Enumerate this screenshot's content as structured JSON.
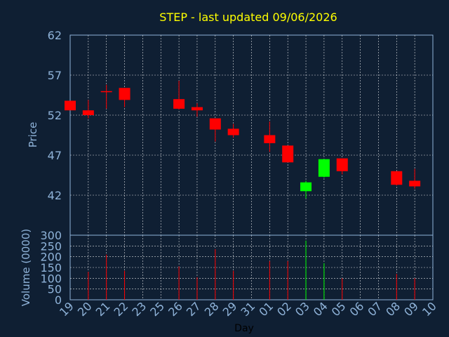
{
  "title": "STEP - last updated 09/06/2026",
  "colors": {
    "background": "#0f1f33",
    "axis_text": "#8fb3d9",
    "title": "#ffff00",
    "up": "#00ff00",
    "down": "#ff0000",
    "grid": "#ffffff"
  },
  "chart_data": [
    {
      "type": "candlestick",
      "ylabel": "Price",
      "ylim": [
        37,
        62
      ],
      "yticks": [
        42,
        47,
        52,
        57,
        62
      ],
      "grid": true,
      "categories": [
        "19",
        "20",
        "21",
        "22",
        "23",
        "25",
        "26",
        "27",
        "28",
        "29",
        "31",
        "01",
        "02",
        "03",
        "04",
        "05",
        "06",
        "07",
        "08",
        "09",
        "10"
      ],
      "candles": [
        {
          "day": "19",
          "open": 53.8,
          "high": 53.8,
          "low": 52.8,
          "close": 52.6
        },
        {
          "day": "20",
          "open": 52.6,
          "high": 53.9,
          "low": 51.6,
          "close": 52.0
        },
        {
          "day": "21",
          "open": 55.0,
          "high": 55.8,
          "low": 52.8,
          "close": 54.9
        },
        {
          "day": "22",
          "open": 55.4,
          "high": 55.4,
          "low": 53.0,
          "close": 53.9
        },
        {
          "day": "26",
          "open": 54.0,
          "high": 56.3,
          "low": 52.7,
          "close": 52.8
        },
        {
          "day": "27",
          "open": 53.0,
          "high": 53.5,
          "low": 51.8,
          "close": 52.6
        },
        {
          "day": "28",
          "open": 51.6,
          "high": 51.6,
          "low": 48.7,
          "close": 50.2
        },
        {
          "day": "29",
          "open": 50.3,
          "high": 50.9,
          "low": 49.2,
          "close": 49.5
        },
        {
          "day": "01",
          "open": 49.5,
          "high": 51.2,
          "low": 47.4,
          "close": 48.5
        },
        {
          "day": "02",
          "open": 48.2,
          "high": 48.2,
          "low": 46.1,
          "close": 46.1
        },
        {
          "day": "03",
          "open": 42.5,
          "high": 43.8,
          "low": 41.6,
          "close": 43.6
        },
        {
          "day": "04",
          "open": 44.3,
          "high": 46.5,
          "low": 44.2,
          "close": 46.5
        },
        {
          "day": "05",
          "open": 46.6,
          "high": 46.6,
          "low": 44.6,
          "close": 45.0
        },
        {
          "day": "08",
          "open": 45.0,
          "high": 45.0,
          "low": 43.2,
          "close": 43.3
        },
        {
          "day": "09",
          "open": 43.8,
          "high": 45.3,
          "low": 42.8,
          "close": 43.1
        }
      ]
    },
    {
      "type": "bar",
      "ylabel": "Volume (0000)",
      "xlabel": "Day",
      "ylim": [
        0,
        300
      ],
      "yticks": [
        0,
        50,
        100,
        150,
        200,
        250,
        300
      ],
      "grid": true,
      "categories": [
        "19",
        "20",
        "21",
        "22",
        "23",
        "25",
        "26",
        "27",
        "28",
        "29",
        "31",
        "01",
        "02",
        "03",
        "04",
        "05",
        "06",
        "07",
        "08",
        "09",
        "10"
      ],
      "bars": [
        {
          "day": "20",
          "value": 130,
          "color": "down"
        },
        {
          "day": "21",
          "value": 210,
          "color": "down"
        },
        {
          "day": "22",
          "value": 135,
          "color": "down"
        },
        {
          "day": "26",
          "value": 155,
          "color": "down"
        },
        {
          "day": "27",
          "value": 105,
          "color": "down"
        },
        {
          "day": "28",
          "value": 235,
          "color": "down"
        },
        {
          "day": "29",
          "value": 135,
          "color": "down"
        },
        {
          "day": "01",
          "value": 180,
          "color": "down"
        },
        {
          "day": "02",
          "value": 180,
          "color": "down"
        },
        {
          "day": "03",
          "value": 275,
          "color": "up"
        },
        {
          "day": "04",
          "value": 170,
          "color": "up"
        },
        {
          "day": "05",
          "value": 100,
          "color": "down"
        },
        {
          "day": "08",
          "value": 120,
          "color": "down"
        },
        {
          "day": "09",
          "value": 100,
          "color": "down"
        }
      ]
    }
  ]
}
